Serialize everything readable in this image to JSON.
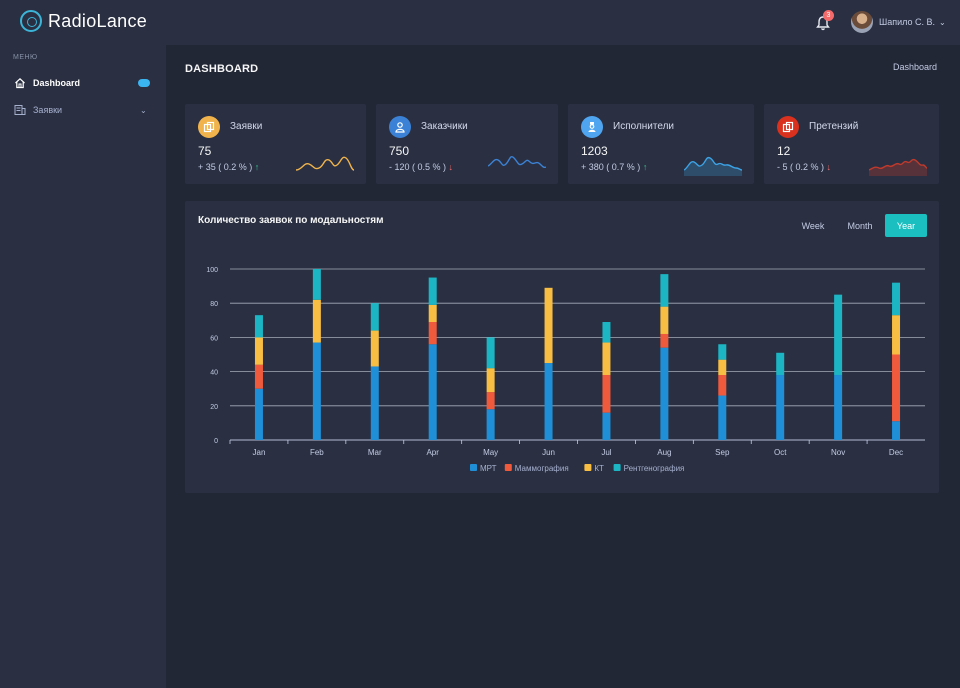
{
  "header": {
    "logo_text": "RadioLance",
    "notification_count": "3",
    "user_name": "Шапило С. В.",
    "user_caret": "⌄"
  },
  "sidebar": {
    "menu_title": "МЕНЮ",
    "items": [
      {
        "label": "Dashboard",
        "icon": "home-icon"
      },
      {
        "label": "Заявки",
        "icon": "requests-icon"
      }
    ]
  },
  "page": {
    "title": "DASHBOARD",
    "breadcrumb": "Dashboard"
  },
  "cards": [
    {
      "title": "Заявки",
      "value": "75",
      "change": "+ 35 ( 0.2 % )",
      "trend": "up",
      "icon_color": "#f1b44c",
      "spark_color": "#f1b44c",
      "icon": "copy-icon"
    },
    {
      "title": "Заказчики",
      "value": "750",
      "change": "- 120 ( 0.5 % )",
      "trend": "down",
      "icon_color": "#3b82d6",
      "spark_color": "#3b82d6",
      "icon": "user-icon"
    },
    {
      "title": "Исполнители",
      "value": "1203",
      "change": "+ 380 ( 0.7 % )",
      "trend": "up",
      "icon_color": "#50a5f1",
      "spark_color": "#3ba3e6",
      "icon": "doctor-icon"
    },
    {
      "title": "Претензий",
      "value": "12",
      "change": "- 5 ( 0.2 % )",
      "trend": "down",
      "icon_color": "#d9311e",
      "spark_color": "#c0392b",
      "icon": "copy-icon"
    }
  ],
  "panel": {
    "title": "Количество заявок по модальностям",
    "periods": [
      "Week",
      "Month",
      "Year"
    ],
    "active_period": "Year"
  },
  "chart_data": {
    "type": "bar",
    "stacked": true,
    "categories": [
      "Jan",
      "Feb",
      "Mar",
      "Apr",
      "May",
      "Jun",
      "Jul",
      "Aug",
      "Sep",
      "Oct",
      "Nov",
      "Dec"
    ],
    "ylim": [
      0,
      100
    ],
    "yticks": [
      0,
      20,
      40,
      60,
      80,
      100
    ],
    "grid": true,
    "legend_position": "bottom",
    "series": [
      {
        "name": "МРТ",
        "color": "#1f8fd8",
        "values": [
          30,
          57,
          43,
          56,
          18,
          45,
          16,
          54,
          26,
          38,
          38,
          11
        ]
      },
      {
        "name": "Маммография",
        "color": "#f05a3c",
        "values": [
          14,
          0,
          0,
          13,
          10,
          0,
          22,
          8,
          12,
          0,
          0,
          39
        ]
      },
      {
        "name": "КТ",
        "color": "#f8bd43",
        "values": [
          16,
          25,
          21,
          10,
          14,
          44,
          19,
          16,
          9,
          0,
          0,
          23
        ]
      },
      {
        "name": "Рентгенография",
        "color": "#1cb5c4",
        "values": [
          13,
          18,
          16,
          16,
          18,
          0,
          12,
          19,
          9,
          13,
          47,
          19
        ]
      }
    ]
  }
}
